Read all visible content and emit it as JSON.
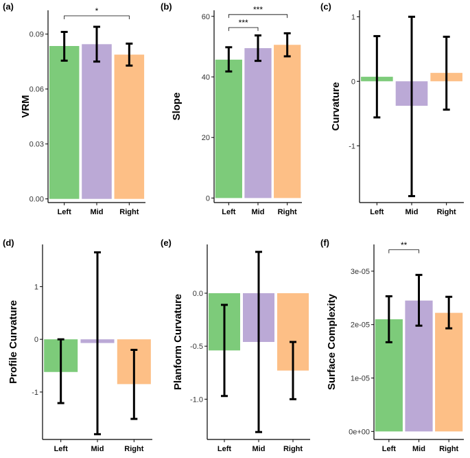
{
  "colors": {
    "Left": "#7DCB7A",
    "Mid": "#BBA9D6",
    "Right": "#FDBF86"
  },
  "chart_data": [
    {
      "type": "bar",
      "panel": "(a)",
      "ylabel": "VRM",
      "categories": [
        "Left",
        "Mid",
        "Right"
      ],
      "values": [
        0.0835,
        0.0845,
        0.0788
      ],
      "error_low": [
        0.0755,
        0.075,
        0.0728
      ],
      "error_high": [
        0.0912,
        0.094,
        0.0848
      ],
      "ylim": [
        -0.002,
        0.103
      ],
      "yticks": [
        0,
        0.03,
        0.06,
        0.09
      ],
      "ytick_labels": [
        "0.00",
        "0.03",
        "0.06",
        "0.09"
      ],
      "significance": [
        {
          "from": 0,
          "to": 2,
          "y": 0.1,
          "label": "*"
        }
      ]
    },
    {
      "type": "bar",
      "panel": "(b)",
      "ylabel": "Slope",
      "categories": [
        "Left",
        "Mid",
        "Right"
      ],
      "values": [
        45.7,
        49.5,
        50.6
      ],
      "error_low": [
        41.8,
        45.3,
        46.8
      ],
      "error_high": [
        49.8,
        53.7,
        54.4
      ],
      "ylim": [
        -1.5,
        62
      ],
      "yticks": [
        0,
        20,
        40,
        60
      ],
      "ytick_labels": [
        "0",
        "20",
        "40",
        "60"
      ],
      "significance": [
        {
          "from": 0,
          "to": 1,
          "y": 56.3,
          "label": "***"
        },
        {
          "from": 0,
          "to": 2,
          "y": 60.6,
          "label": "***"
        }
      ]
    },
    {
      "type": "bar",
      "panel": "(c)",
      "ylabel": "Curvature",
      "categories": [
        "Left",
        "Mid",
        "Right"
      ],
      "values": [
        0.07,
        -0.38,
        0.13
      ],
      "error_low": [
        -0.56,
        -1.78,
        -0.44
      ],
      "error_high": [
        0.7,
        1.0,
        0.69
      ],
      "ylim": [
        -1.88,
        1.1
      ],
      "yticks": [
        -1,
        0,
        1
      ],
      "ytick_labels": [
        "-1",
        "0",
        "1"
      ],
      "significance": []
    },
    {
      "type": "bar",
      "panel": "(d)",
      "ylabel": "Profile Curvature",
      "categories": [
        "Left",
        "Mid",
        "Right"
      ],
      "values": [
        -0.62,
        -0.07,
        -0.85
      ],
      "error_low": [
        -1.21,
        -1.8,
        -1.51
      ],
      "error_high": [
        0.0,
        1.65,
        -0.2
      ],
      "ylim": [
        -1.9,
        1.8
      ],
      "yticks": [
        -1,
        0,
        1
      ],
      "ytick_labels": [
        "-1",
        "0",
        "1"
      ],
      "significance": []
    },
    {
      "type": "bar",
      "panel": "(e)",
      "ylabel": "Planform Curvature",
      "categories": [
        "Left",
        "Mid",
        "Right"
      ],
      "values": [
        -0.54,
        -0.46,
        -0.73
      ],
      "error_low": [
        -0.97,
        -1.31,
        -1.0
      ],
      "error_high": [
        -0.11,
        0.39,
        -0.46
      ],
      "ylim": [
        -1.38,
        0.46
      ],
      "yticks": [
        -1.0,
        -0.5,
        0.0
      ],
      "ytick_labels": [
        "-1.0",
        "-0.5",
        "0.0"
      ],
      "significance": []
    },
    {
      "type": "bar",
      "panel": "(f)",
      "ylabel": "Surface Complexity",
      "categories": [
        "Left",
        "Mid",
        "Right"
      ],
      "values": [
        2.1e-05,
        2.45e-05,
        2.22e-05
      ],
      "error_low": [
        1.67e-05,
        1.98e-05,
        1.93e-05
      ],
      "error_high": [
        2.53e-05,
        2.93e-05,
        2.52e-05
      ],
      "ylim": [
        -1.5e-06,
        3.5e-05
      ],
      "yticks": [
        0,
        1e-05,
        2e-05,
        3e-05
      ],
      "ytick_labels": [
        "0e+00",
        "1e-05",
        "2e-05",
        "3e-05"
      ],
      "significance": [
        {
          "from": 0,
          "to": 1,
          "y": 3.4e-05,
          "label": "**"
        }
      ]
    }
  ]
}
